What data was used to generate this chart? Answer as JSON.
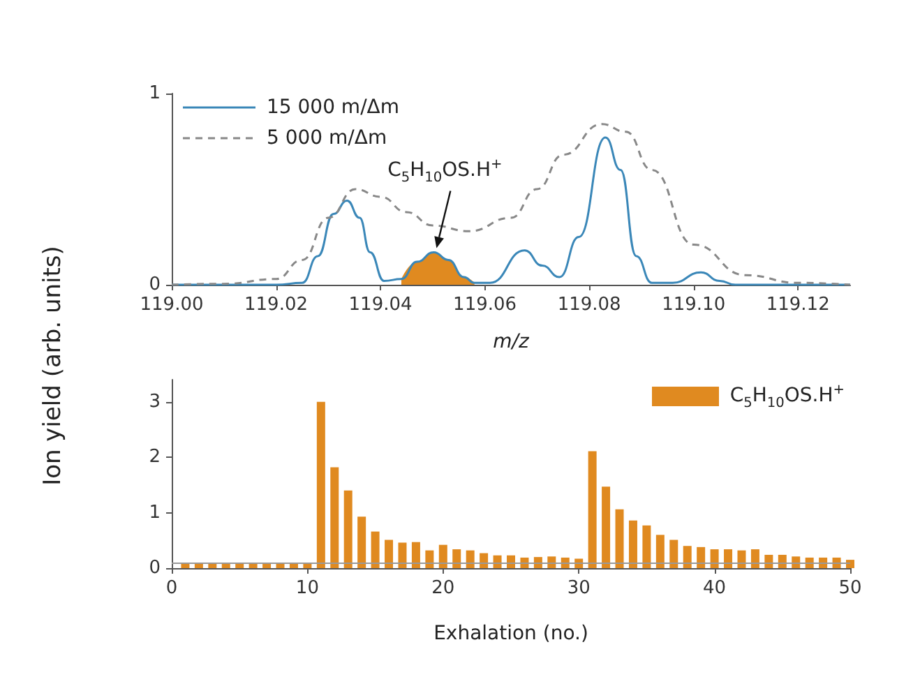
{
  "chart_data": [
    {
      "type": "line",
      "xlabel": "m/z",
      "ylabel": "Ion yield (arb. units)",
      "xlim": [
        119.0,
        119.13
      ],
      "ylim": [
        0,
        1
      ],
      "yticks": [
        0,
        1
      ],
      "xticks": [
        {
          "value": 119.0,
          "label": "119.00"
        },
        {
          "value": 119.02,
          "label": "119.02"
        },
        {
          "value": 119.04,
          "label": "119.04"
        },
        {
          "value": 119.06,
          "label": "119.06"
        },
        {
          "value": 119.08,
          "label": "119.08"
        },
        {
          "value": 119.1,
          "label": "119.10"
        },
        {
          "value": 119.12,
          "label": "119.12"
        }
      ],
      "legend": "top left",
      "grid": false,
      "marker": "none",
      "annotations": [
        "C$_{5}$H$_{10}$OS.H$^{+}$"
      ],
      "series": [
        {
          "name": "15 000 m/Δm",
          "color": "#3a87b8",
          "line_style": "solid",
          "x": [
            119.0,
            119.02,
            119.025,
            119.028,
            119.031,
            119.0336,
            119.036,
            119.038,
            119.0407,
            119.044,
            119.047,
            119.0502,
            119.053,
            119.056,
            119.058,
            119.061,
            119.0676,
            119.071,
            119.0743,
            119.078,
            119.0831,
            119.086,
            119.089,
            119.092,
            119.096,
            119.1014,
            119.105,
            119.108,
            119.13
          ],
          "values": [
            0,
            0,
            0.01,
            0.15,
            0.37,
            0.44,
            0.35,
            0.17,
            0.02,
            0.03,
            0.12,
            0.17,
            0.13,
            0.04,
            0.01,
            0.01,
            0.18,
            0.1,
            0.04,
            0.25,
            0.77,
            0.6,
            0.15,
            0.01,
            0.01,
            0.065,
            0.02,
            0,
            0
          ]
        },
        {
          "name": "5 000 m/Δm",
          "color": "#888888",
          "line_style": "dashed",
          "x": [
            119.0,
            119.01,
            119.02,
            119.025,
            119.03,
            119.0352,
            119.04,
            119.045,
            119.05,
            119.057,
            119.065,
            119.07,
            119.075,
            119.0824,
            119.087,
            119.092,
            119.1,
            119.11,
            119.12,
            119.13
          ],
          "values": [
            0,
            0.005,
            0.03,
            0.13,
            0.35,
            0.5,
            0.46,
            0.38,
            0.31,
            0.28,
            0.35,
            0.5,
            0.68,
            0.84,
            0.8,
            0.6,
            0.21,
            0.05,
            0.01,
            0
          ]
        },
        {
          "type": "area",
          "color": "#e08a20",
          "x": [
            119.044,
            119.047,
            119.0502,
            119.053,
            119.056,
            119.058
          ],
          "values": [
            0.03,
            0.12,
            0.17,
            0.13,
            0.04,
            0.01
          ]
        }
      ]
    },
    {
      "type": "bar",
      "xlabel": "Exhalation (no.)",
      "xlim": [
        0,
        50
      ],
      "xticks": [
        0,
        10,
        20,
        30,
        40,
        50
      ],
      "ylim": [
        0,
        3.4
      ],
      "yticks": [
        0,
        1,
        2,
        3
      ],
      "legend": "top right",
      "grid": false,
      "ref_lines": [
        {
          "axis": "y",
          "value": 0.1,
          "color": "#999999"
        }
      ],
      "series": [
        {
          "name": "C$_{5}$H$_{10}$OS.H$^{+}$",
          "color": "#e08a20",
          "x": [
            1,
            2,
            3,
            4,
            5,
            6,
            7,
            8,
            9,
            10,
            11,
            12,
            13,
            14,
            15,
            16,
            17,
            18,
            19,
            20,
            21,
            22,
            23,
            24,
            25,
            26,
            27,
            28,
            29,
            30,
            31,
            32,
            33,
            34,
            35,
            36,
            37,
            38,
            39,
            40,
            41,
            42,
            43,
            44,
            45,
            46,
            47,
            48,
            49,
            50
          ],
          "values": [
            0.1,
            0.1,
            0.1,
            0.1,
            0.1,
            0.1,
            0.1,
            0.1,
            0.1,
            0.1,
            3.0,
            1.82,
            1.4,
            0.93,
            0.66,
            0.51,
            0.46,
            0.47,
            0.32,
            0.42,
            0.34,
            0.32,
            0.27,
            0.23,
            0.23,
            0.19,
            0.2,
            0.21,
            0.19,
            0.17,
            2.11,
            1.47,
            1.06,
            0.86,
            0.77,
            0.6,
            0.51,
            0.4,
            0.38,
            0.34,
            0.34,
            0.32,
            0.34,
            0.24,
            0.24,
            0.21,
            0.19,
            0.19,
            0.19,
            0.15
          ]
        }
      ]
    }
  ]
}
